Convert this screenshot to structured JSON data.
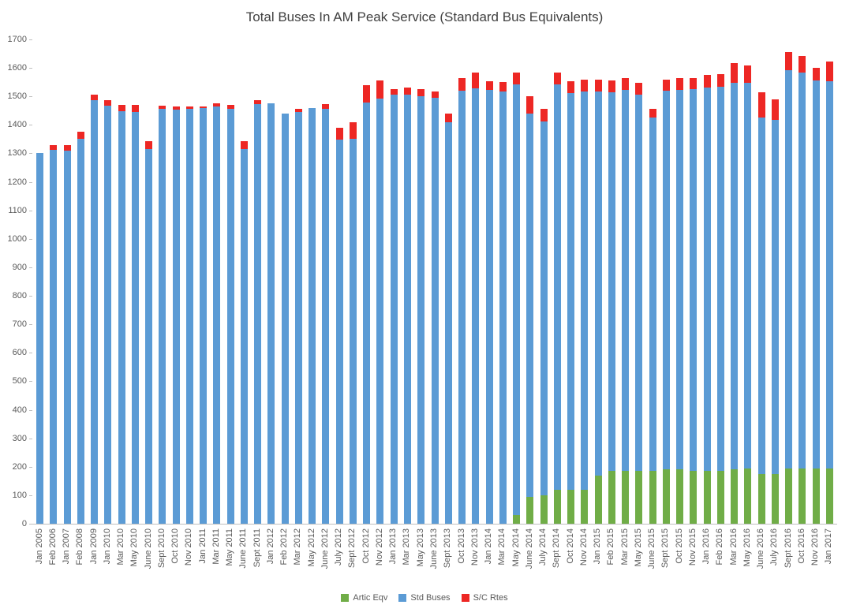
{
  "chart_data": {
    "type": "bar",
    "stacked": true,
    "title": "Total Buses In AM Peak Service (Standard Bus Equivalents)",
    "xlabel": "",
    "ylabel": "",
    "ylim": [
      0,
      1700
    ],
    "ytick_step": 100,
    "grid": false,
    "legend_position": "bottom",
    "categories": [
      "Jan 2005",
      "Feb 2006",
      "Jan 2007",
      "Feb 2008",
      "Jan 2009",
      "Jan 2010",
      "Mar 2010",
      "May 2010",
      "June 2010",
      "Sept 2010",
      "Oct 2010",
      "Nov 2010",
      "Jan 2011",
      "Mar 2011",
      "May 2011",
      "June 2011",
      "Sept 2011",
      "Jan 2012",
      "Feb 2012",
      "Mar 2012",
      "May 2012",
      "June 2012",
      "July 2012",
      "Sept 2012",
      "Oct 2012",
      "Nov 2012",
      "Jan 2013",
      "Mar 2013",
      "May 2013",
      "June 2013",
      "Sept 2013",
      "Oct 2013",
      "Nov 2013",
      "Jan 2014",
      "Mar 2014",
      "May 2014",
      "June 2014",
      "July 2014",
      "Sept 2014",
      "Oct 2014",
      "Nov 2014",
      "Jan 2015",
      "Feb 2015",
      "Mar 2015",
      "May 2015",
      "June 2015",
      "Sept 2015",
      "Oct 2015",
      "Nov 2015",
      "Jan 2016",
      "Feb 2016",
      "Mar 2016",
      "May 2016",
      "June 2016",
      "July 2016",
      "Sept 2016",
      "Oct 2016",
      "Nov 2016",
      "Jan 2017"
    ],
    "series": [
      {
        "name": "Artic Eqv",
        "color": "#70AD47",
        "values": [
          0,
          0,
          0,
          0,
          0,
          0,
          0,
          0,
          0,
          0,
          0,
          0,
          0,
          0,
          0,
          0,
          0,
          0,
          0,
          0,
          0,
          0,
          0,
          0,
          0,
          0,
          0,
          0,
          0,
          0,
          0,
          0,
          0,
          0,
          0,
          30,
          95,
          100,
          120,
          120,
          120,
          170,
          185,
          185,
          185,
          185,
          190,
          190,
          185,
          185,
          185,
          190,
          195,
          175,
          175,
          195,
          195,
          195,
          195
        ]
      },
      {
        "name": "Std Buses",
        "color": "#5B9BD5",
        "values": [
          1300,
          1312,
          1310,
          1350,
          1488,
          1468,
          1448,
          1446,
          1315,
          1455,
          1454,
          1456,
          1460,
          1464,
          1457,
          1314,
          1474,
          1475,
          1440,
          1445,
          1459,
          1457,
          1348,
          1352,
          1478,
          1492,
          1505,
          1505,
          1500,
          1494,
          1408,
          1520,
          1528,
          1524,
          1518,
          1513,
          1345,
          1312,
          1422,
          1392,
          1398,
          1348,
          1330,
          1338,
          1322,
          1242,
          1330,
          1332,
          1340,
          1346,
          1350,
          1358,
          1352,
          1252,
          1242,
          1396,
          1388,
          1362,
          1358
        ]
      },
      {
        "name": "S/C Rtes",
        "color": "#ED2724",
        "values": [
          0,
          18,
          18,
          25,
          17,
          18,
          22,
          24,
          27,
          12,
          12,
          10,
          6,
          12,
          12,
          28,
          12,
          0,
          0,
          12,
          0,
          16,
          42,
          58,
          62,
          63,
          20,
          25,
          25,
          24,
          32,
          45,
          55,
          30,
          32,
          40,
          62,
          45,
          43,
          42,
          40,
          40,
          42,
          42,
          40,
          28,
          40,
          42,
          40,
          44,
          44,
          68,
          62,
          88,
          72,
          64,
          58,
          44,
          70
        ]
      }
    ],
    "ytick_labels": [
      "0",
      "100",
      "200",
      "300",
      "400",
      "500",
      "600",
      "700",
      "800",
      "900",
      "1000",
      "1100",
      "1200",
      "1300",
      "1400",
      "1500",
      "1600",
      "1700"
    ]
  }
}
